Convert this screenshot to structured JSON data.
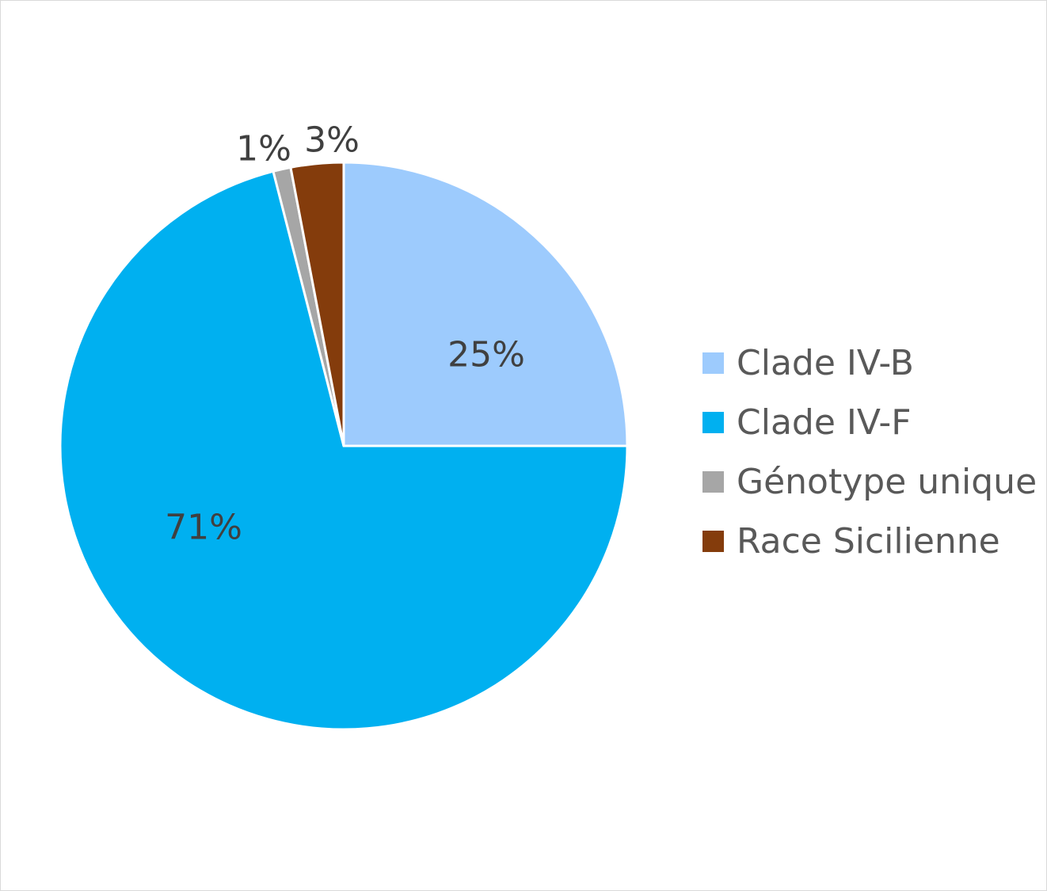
{
  "chart_data": {
    "type": "pie",
    "title": "",
    "categories": [
      "Clade IV-B",
      "Clade IV-F",
      "Génotype unique",
      "Race Sicilienne"
    ],
    "values": [
      25,
      71,
      1,
      3
    ],
    "data_labels": [
      "25%",
      "71%",
      "1%",
      "3%"
    ],
    "colors": [
      "#9dcbfd",
      "#00b0f0",
      "#a6a6a6",
      "#843c0c"
    ],
    "start_angle_deg": 0,
    "direction": "clockwise",
    "legend_position": "right"
  }
}
